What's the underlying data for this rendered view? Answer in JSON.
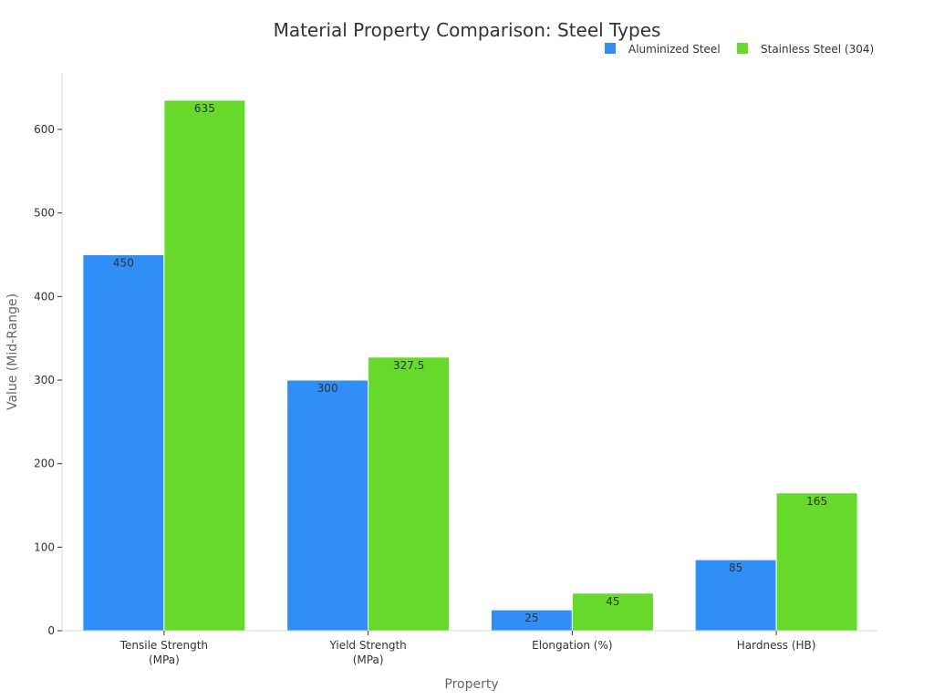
{
  "chart_data": {
    "type": "bar",
    "title": "Material Property Comparison: Steel Types",
    "xlabel": "Property",
    "ylabel": "Value (Mid-Range)",
    "categories": [
      [
        "Tensile Strength",
        "(MPa)"
      ],
      [
        "Yield Strength",
        "(MPa)"
      ],
      [
        "Elongation (%)"
      ],
      [
        "Hardness (HB)"
      ]
    ],
    "series": [
      {
        "name": "Aluminized Steel",
        "color": "#2f8ff7",
        "values": [
          450,
          300,
          25,
          85
        ],
        "labels": [
          "450",
          "300",
          "25",
          "85"
        ]
      },
      {
        "name": "Stainless Steel (304)",
        "color": "#66d92a",
        "values": [
          635,
          327.5,
          45,
          165
        ],
        "labels": [
          "635",
          "327.5",
          "45",
          "165"
        ]
      }
    ],
    "ylim": [
      0,
      655
    ],
    "yticks": [
      0,
      100,
      200,
      300,
      400,
      500,
      600
    ],
    "grid": false,
    "legend": "top-right"
  }
}
